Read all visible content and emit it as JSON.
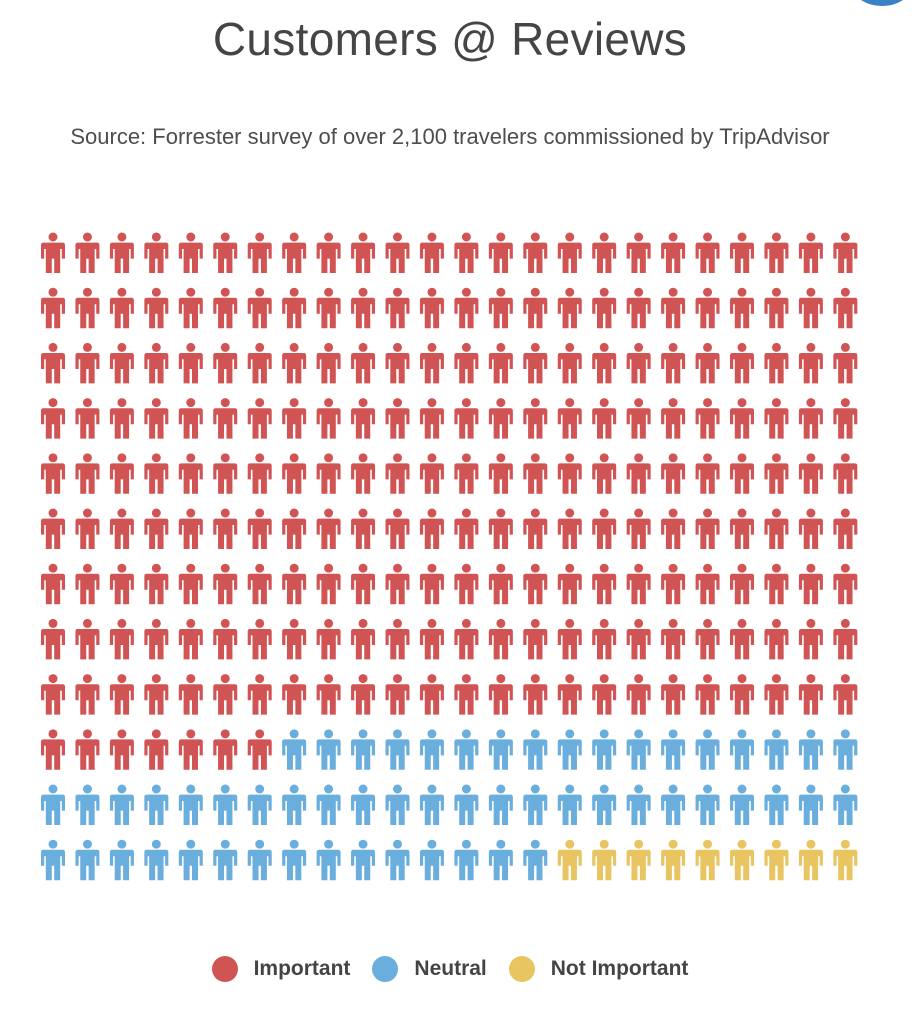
{
  "title": "Customers @ Reviews",
  "subtitle": "Source: Forrester survey of over 2,100 travelers commissioned by TripAdvisor",
  "chart_data": {
    "type": "pictogram",
    "title": "Customers @ Reviews",
    "subtitle": "Source: Forrester survey of over 2,100 travelers commissioned by TripAdvisor",
    "icon": "person-icon",
    "grid": {
      "rows": 12,
      "columns": 24,
      "total_icons": 288
    },
    "categories": [
      "Important",
      "Neutral",
      "Not Important"
    ],
    "values": [
      223,
      56,
      9
    ],
    "colors": [
      "#d15454",
      "#6aaedd",
      "#e8c560"
    ],
    "legend_position": "bottom-center"
  }
}
